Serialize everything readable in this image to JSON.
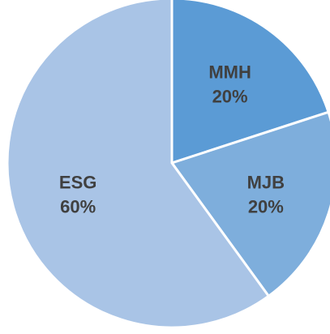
{
  "chart_data": {
    "type": "pie",
    "title": "",
    "legend": "none",
    "categories": [
      "MMH",
      "MJB",
      "ESG"
    ],
    "values": [
      20,
      20,
      60
    ],
    "data_labels": [
      "20%",
      "20%",
      "60%"
    ],
    "colors": [
      "#5b9bd5",
      "#7eaedc",
      "#a9c4e6"
    ]
  }
}
